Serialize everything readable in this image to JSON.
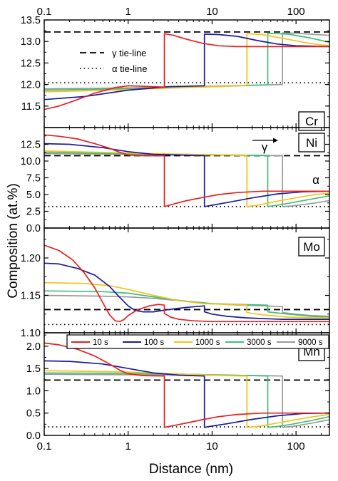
{
  "chart_data": {
    "type": "line",
    "xscale": "log",
    "xlim": [
      0.1,
      250
    ],
    "x_ticks": [
      0.1,
      1,
      10,
      100
    ],
    "x_tick_labels": [
      "0.1",
      "1",
      "10",
      "100"
    ],
    "xlabel": "Distance (nm)",
    "ylabel": "Composition (at.%)",
    "series_colors": {
      "10 s": "#e8201f",
      "100 s": "#1b1b9c",
      "1000 s": "#f2c318",
      "3000 s": "#3fc07a",
      "9000 s": "#9a9a9a"
    },
    "legend": {
      "panel": "Mo",
      "placement": "bottom-inside",
      "entries": [
        "10 s",
        "100 s",
        "1000 s",
        "3000 s",
        "9000 s"
      ]
    },
    "panels": [
      {
        "element": "Cr",
        "ylim": [
          11.0,
          13.5
        ],
        "y_ticks": [
          11.5,
          12.0,
          12.5,
          13.0,
          13.5
        ],
        "y_tick_labels": [
          "11.5",
          "12.0",
          "12.5",
          "13.0",
          "13.5"
        ],
        "gamma_tieline": 13.22,
        "alpha_tieline": 12.04,
        "tieline_legend": {
          "gamma": "γ tie-line",
          "alpha": "α tie-line"
        },
        "series": [
          {
            "name": "10 s",
            "x": [
              0.1,
              0.15,
              0.25,
              0.4,
              0.7,
              1.0,
              1.5,
              2.0,
              2.7,
              2.7,
              3.5,
              5,
              8,
              12,
              20,
              40,
              100,
              250
            ],
            "y": [
              11.42,
              11.5,
              11.65,
              11.8,
              11.93,
              11.97,
              11.96,
              11.95,
              11.94,
              13.18,
              13.14,
              13.05,
              12.95,
              12.9,
              12.88,
              12.88,
              12.88,
              12.88
            ]
          },
          {
            "name": "100 s",
            "x": [
              0.1,
              0.3,
              1.0,
              3.0,
              8.1,
              8.1,
              12,
              20,
              35,
              60,
              100,
              250
            ],
            "y": [
              11.65,
              11.72,
              11.87,
              11.95,
              11.97,
              13.17,
              13.16,
              13.12,
              13.02,
              12.94,
              12.9,
              12.88
            ]
          },
          {
            "name": "1000 s",
            "x": [
              0.1,
              1,
              5,
              15,
              26,
              26,
              40,
              80,
              150,
              250
            ],
            "y": [
              11.83,
              11.88,
              11.93,
              11.96,
              11.98,
              13.18,
              13.16,
              13.05,
              12.95,
              12.9
            ]
          },
          {
            "name": "3000 s",
            "x": [
              0.1,
              1,
              10,
              30,
              46,
              46,
              80,
              150,
              250
            ],
            "y": [
              11.87,
              11.9,
              11.95,
              11.98,
              11.99,
              13.19,
              13.17,
              13.08,
              12.98
            ]
          },
          {
            "name": "9000 s",
            "x": [
              0.1,
              1,
              10,
              40,
              69,
              69,
              100,
              150,
              250
            ],
            "y": [
              11.9,
              11.92,
              11.96,
              11.99,
              12.0,
              13.2,
              13.19,
              13.17,
              13.14
            ]
          }
        ]
      },
      {
        "element": "Ni",
        "ylim": [
          0.0,
          15.0
        ],
        "y_ticks": [
          0.0,
          2.5,
          5.0,
          7.5,
          10.0,
          12.5
        ],
        "y_tick_labels": [
          "0.0",
          "2.5",
          "5.0",
          "7.5",
          "10.0",
          "12.5"
        ],
        "gamma_tieline": 10.8,
        "alpha_tieline": 3.2,
        "phase_labels": {
          "gamma": "γ",
          "alpha": "α"
        },
        "series": [
          {
            "name": "10 s",
            "x": [
              0.1,
              0.15,
              0.25,
              0.4,
              0.6,
              0.8,
              1.0,
              1.5,
              2.7,
              2.7,
              3.5,
              5,
              8,
              12,
              20,
              40,
              100,
              250
            ],
            "y": [
              13.9,
              13.7,
              13.3,
              12.6,
              11.9,
              11.3,
              10.9,
              10.8,
              10.8,
              3.2,
              3.6,
              4.1,
              4.6,
              5.0,
              5.3,
              5.5,
              5.5,
              5.5
            ]
          },
          {
            "name": "100 s",
            "x": [
              0.1,
              0.2,
              0.5,
              1,
              2,
              4,
              8.1,
              8.1,
              10,
              15,
              30,
              60,
              120,
              250
            ],
            "y": [
              12.6,
              12.5,
              12.0,
              11.4,
              11.0,
              10.9,
              10.8,
              3.2,
              3.4,
              3.8,
              4.5,
              5.1,
              5.4,
              5.5
            ]
          },
          {
            "name": "1000 s",
            "x": [
              0.1,
              1,
              5,
              15,
              26,
              26,
              35,
              50,
              80,
              150,
              250
            ],
            "y": [
              11.5,
              11.2,
              11.0,
              10.9,
              10.8,
              3.2,
              3.4,
              3.8,
              4.3,
              4.9,
              5.2
            ]
          },
          {
            "name": "3000 s",
            "x": [
              0.1,
              1,
              10,
              30,
              46,
              46,
              60,
              90,
              150,
              250
            ],
            "y": [
              11.3,
              11.1,
              10.95,
              10.85,
              10.8,
              3.2,
              3.4,
              3.8,
              4.3,
              4.8
            ]
          },
          {
            "name": "9000 s",
            "x": [
              0.1,
              1,
              10,
              40,
              69,
              69,
              90,
              130,
              180,
              250
            ],
            "y": [
              11.1,
              11.0,
              10.9,
              10.85,
              10.8,
              3.2,
              3.3,
              3.55,
              3.8,
              4.1
            ]
          }
        ]
      },
      {
        "element": "Mo",
        "ylim": [
          1.1,
          1.24
        ],
        "y_ticks": [
          1.1,
          1.15,
          1.2
        ],
        "y_tick_labels": [
          "1.10",
          "1.15",
          "1.20"
        ],
        "gamma_tieline": 1.131,
        "alpha_tieline": 1.111,
        "series": [
          {
            "name": "10 s",
            "x": [
              0.1,
              0.15,
              0.22,
              0.3,
              0.4,
              0.5,
              0.6,
              0.7,
              0.8,
              0.9,
              1.0,
              1.3,
              1.8,
              2.3,
              2.7,
              2.7,
              3.2,
              4,
              6,
              10,
              20,
              40,
              100,
              250
            ],
            "y": [
              1.217,
              1.21,
              1.197,
              1.18,
              1.16,
              1.14,
              1.124,
              1.116,
              1.115,
              1.118,
              1.123,
              1.131,
              1.136,
              1.138,
              1.137,
              1.126,
              1.121,
              1.118,
              1.116,
              1.115,
              1.115,
              1.115,
              1.115,
              1.115
            ]
          },
          {
            "name": "100 s",
            "x": [
              0.1,
              0.15,
              0.25,
              0.4,
              0.6,
              0.8,
              1.0,
              1.2,
              1.5,
              2,
              3,
              5,
              8.1,
              8.1,
              10,
              15,
              25,
              40,
              70,
              120,
              250
            ],
            "y": [
              1.193,
              1.192,
              1.186,
              1.177,
              1.162,
              1.147,
              1.136,
              1.13,
              1.128,
              1.128,
              1.131,
              1.134,
              1.136,
              1.128,
              1.125,
              1.122,
              1.12,
              1.119,
              1.118,
              1.118,
              1.118
            ]
          },
          {
            "name": "1000 s",
            "x": [
              0.1,
              0.3,
              0.6,
              1,
              2,
              4,
              8,
              15,
              26,
              26,
              40,
              80,
              150,
              250
            ],
            "y": [
              1.167,
              1.166,
              1.163,
              1.158,
              1.15,
              1.143,
              1.139,
              1.138,
              1.137,
              1.127,
              1.124,
              1.121,
              1.12,
              1.12
            ]
          },
          {
            "name": "3000 s",
            "x": [
              0.1,
              0.5,
              1,
              2,
              5,
              10,
              20,
              46,
              46,
              80,
              150,
              250
            ],
            "y": [
              1.156,
              1.155,
              1.153,
              1.148,
              1.142,
              1.139,
              1.138,
              1.137,
              1.128,
              1.125,
              1.122,
              1.121
            ]
          },
          {
            "name": "9000 s",
            "x": [
              0.1,
              0.5,
              1,
              2,
              5,
              10,
              20,
              40,
              69,
              69,
              100,
              150,
              250
            ],
            "y": [
              1.15,
              1.149,
              1.148,
              1.146,
              1.142,
              1.139,
              1.137,
              1.136,
              1.135,
              1.127,
              1.125,
              1.123,
              1.122
            ]
          }
        ]
      },
      {
        "element": "Mn",
        "ylim": [
          0.0,
          2.3
        ],
        "y_ticks": [
          0.0,
          0.5,
          1.0,
          1.5,
          2.0
        ],
        "y_tick_labels": [
          "0.0",
          "0.5",
          "1.0",
          "1.5",
          "2.0"
        ],
        "gamma_tieline": 1.24,
        "alpha_tieline": 0.19,
        "series": [
          {
            "name": "10 s",
            "x": [
              0.1,
              0.15,
              0.25,
              0.4,
              0.6,
              0.8,
              1.0,
              1.5,
              2.7,
              2.7,
              3.5,
              5,
              8,
              12,
              20,
              40,
              100,
              250
            ],
            "y": [
              2.07,
              2.03,
              1.93,
              1.78,
              1.6,
              1.46,
              1.38,
              1.34,
              1.33,
              0.18,
              0.22,
              0.28,
              0.36,
              0.42,
              0.47,
              0.5,
              0.5,
              0.5
            ]
          },
          {
            "name": "100 s",
            "x": [
              0.1,
              0.2,
              0.5,
              1,
              2,
              4,
              8.1,
              8.1,
              10,
              15,
              30,
              60,
              120,
              250
            ],
            "y": [
              1.67,
              1.66,
              1.6,
              1.5,
              1.4,
              1.35,
              1.33,
              0.18,
              0.21,
              0.26,
              0.36,
              0.44,
              0.49,
              0.5
            ]
          },
          {
            "name": "1000 s",
            "x": [
              0.1,
              1,
              5,
              15,
              26,
              26,
              35,
              50,
              80,
              150,
              250
            ],
            "y": [
              1.45,
              1.42,
              1.37,
              1.34,
              1.33,
              0.18,
              0.2,
              0.25,
              0.32,
              0.41,
              0.47
            ]
          },
          {
            "name": "3000 s",
            "x": [
              0.1,
              1,
              10,
              30,
              46,
              46,
              60,
              90,
              150,
              250
            ],
            "y": [
              1.4,
              1.39,
              1.36,
              1.34,
              1.33,
              0.18,
              0.2,
              0.25,
              0.33,
              0.42
            ]
          },
          {
            "name": "9000 s",
            "x": [
              0.1,
              1,
              10,
              40,
              69,
              69,
              90,
              130,
              180,
              250
            ],
            "y": [
              1.37,
              1.36,
              1.35,
              1.34,
              1.33,
              0.18,
              0.2,
              0.25,
              0.3,
              0.35
            ]
          }
        ]
      }
    ]
  }
}
